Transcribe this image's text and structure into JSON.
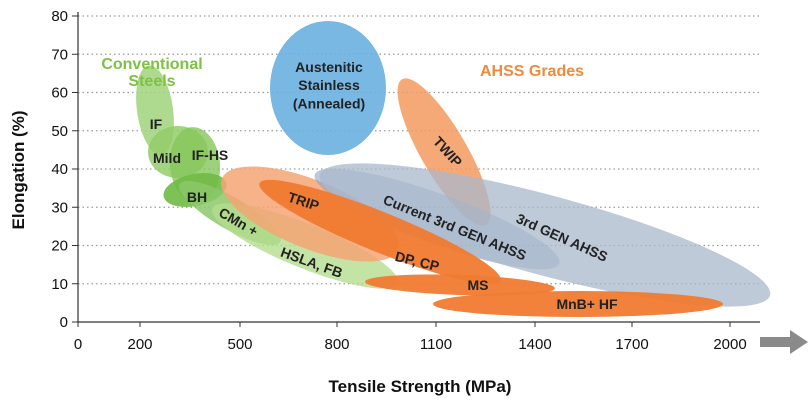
{
  "chart_data": {
    "type": "scatter",
    "title": "",
    "xlabel": "Tensile Strength (MPa)",
    "ylabel": "Elongation (%)",
    "xlim": [
      0,
      2100
    ],
    "ylim": [
      0,
      80
    ],
    "x_ticks": [
      0,
      200,
      500,
      800,
      1100,
      1400,
      1700,
      2000
    ],
    "y_ticks": [
      0,
      10,
      20,
      30,
      40,
      50,
      60,
      70,
      80
    ],
    "grid": "horizontal dotted",
    "group_labels": [
      {
        "text": "Conventional\nSteels",
        "color": "#7dc242"
      },
      {
        "text": "AHSS Grades",
        "color": "#f08a3c"
      }
    ],
    "regions": [
      {
        "label": "IF",
        "group": "Conventional Steels",
        "color": "#9fd37a",
        "cx": 235,
        "cy": 53,
        "rx": 40,
        "ry": 10,
        "angle": 0
      },
      {
        "label": "Mild",
        "group": "Conventional Steels",
        "color": "#93cc6a",
        "cx": 280,
        "cy": 41,
        "rx": 70,
        "ry": 9,
        "angle": 0
      },
      {
        "label": "IF-HS",
        "group": "Conventional Steels",
        "color": "#86c55a",
        "cx": 340,
        "cy": 40,
        "rx": 70,
        "ry": 10,
        "angle": 0
      },
      {
        "label": "BH",
        "group": "Conventional Steels",
        "color": "#6fba45",
        "cx": 360,
        "cy": 35,
        "rx": 80,
        "ry": 5,
        "angle": 0
      },
      {
        "label": "CMn +",
        "group": "Conventional Steels",
        "color": "#8cc86a",
        "cx": 470,
        "cy": 28,
        "rx": 140,
        "ry": 6,
        "angle": 0
      },
      {
        "label": "HSLA, FB",
        "group": "Conventional Steels",
        "color": "#b5dd8e",
        "cx": 650,
        "cy": 20,
        "rx": 280,
        "ry": 7,
        "angle": 0
      },
      {
        "label": "Austenitic\nStainless\n(Annealed)",
        "group": "",
        "color": "#6ab0e0",
        "cx": 800,
        "cy": 60,
        "rx": 175,
        "ry": 17,
        "angle": 0
      },
      {
        "label": "TWIP",
        "group": "AHSS Grades",
        "color": "#f39a5f",
        "cx": 1160,
        "cy": 44,
        "rx": 210,
        "ry": 6,
        "angle": 0
      },
      {
        "label": "TRIP",
        "group": "AHSS Grades",
        "color": "#f5a574",
        "cx": 750,
        "cy": 31,
        "rx": 260,
        "ry": 7,
        "angle": 0
      },
      {
        "label": "Current 3rd GEN AHSS",
        "group": "AHSS Grades",
        "color": "#8ea5bf",
        "cx": 1080,
        "cy": 27,
        "rx": 520,
        "ry": 9,
        "angle": 0
      },
      {
        "label": "3rd GEN AHSS",
        "group": "AHSS Grades",
        "color": "#a9b8cc",
        "cx": 1370,
        "cy": 24,
        "rx": 800,
        "ry": 10,
        "angle": 0
      },
      {
        "label": "DP, CP",
        "group": "AHSS Grades",
        "color": "#f07a30",
        "cx": 940,
        "cy": 18,
        "rx": 450,
        "ry": 6,
        "angle": 0
      },
      {
        "label": "MS",
        "group": "AHSS Grades",
        "color": "#f07a30",
        "cx": 1250,
        "cy": 9,
        "rx": 280,
        "ry": 3,
        "angle": 0
      },
      {
        "label": "MnB+ HF",
        "group": "AHSS Grades",
        "color": "#f07a30",
        "cx": 1530,
        "cy": 5,
        "rx": 420,
        "ry": 3,
        "angle": 0
      }
    ]
  }
}
